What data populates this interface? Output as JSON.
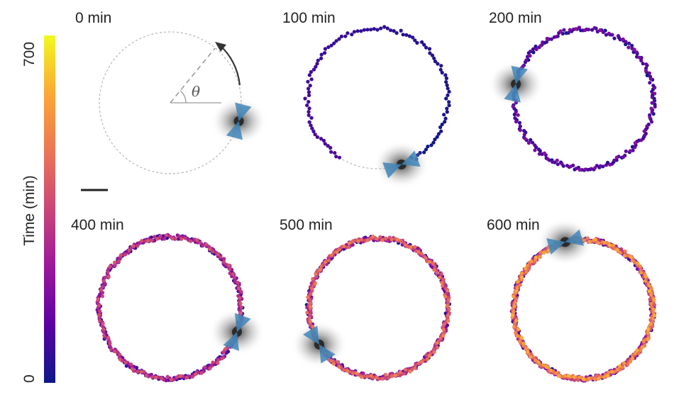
{
  "colorbar": {
    "label": "Time (min)",
    "max_label": "700",
    "min_label": "0",
    "range": [
      0,
      700
    ],
    "colormap": [
      "#0d1887",
      "#5b02a3",
      "#9a179b",
      "#cb4678",
      "#eb7655",
      "#fca835",
      "#f0f921"
    ]
  },
  "annotation": {
    "angle_symbol": "θ"
  },
  "panels": [
    {
      "time_label": "0 min",
      "time": 0,
      "cell_angle_deg": -15
    },
    {
      "time_label": "100 min",
      "time": 100,
      "cell_angle_deg": -70
    },
    {
      "time_label": "200 min",
      "time": 200,
      "cell_angle_deg": 168
    },
    {
      "time_label": "400 min",
      "time": 400,
      "cell_angle_deg": -20
    },
    {
      "time_label": "500 min",
      "time": 500,
      "cell_angle_deg": 212
    },
    {
      "time_label": "600 min",
      "time": 600,
      "cell_angle_deg": 105
    }
  ],
  "colors": {
    "cell_blue": "#3f86b8",
    "cell_gray": "#8a8a8a",
    "guide_gray": "#9a9a9a",
    "arrow": "#333333",
    "scale_bar": "#222222"
  }
}
